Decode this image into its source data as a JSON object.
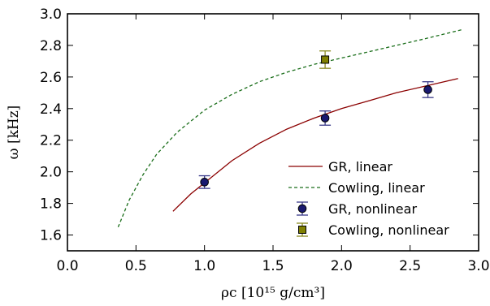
{
  "chart_data": {
    "type": "line",
    "xlabel": "ρc [10¹⁵ g/cm³]",
    "ylabel": "ω [kHz]",
    "xlim": [
      0.0,
      3.0
    ],
    "ylim": [
      1.5,
      3.0
    ],
    "xticks": [
      0.0,
      0.5,
      1.0,
      1.5,
      2.0,
      2.5,
      3.0
    ],
    "yticks": [
      1.6,
      1.8,
      2.0,
      2.2,
      2.4,
      2.6,
      2.8,
      3.0
    ],
    "xtick_labels": [
      "0.0",
      "0.5",
      "1.0",
      "1.5",
      "2.0",
      "2.5",
      "3.0"
    ],
    "ytick_labels": [
      "1.6",
      "1.8",
      "2.0",
      "2.2",
      "2.4",
      "2.6",
      "2.8",
      "3.0"
    ],
    "grid": false,
    "legend_position": "bottom-right",
    "series": [
      {
        "name": "GR, linear",
        "kind": "line",
        "style": "solid",
        "color": "#8b0000",
        "x": [
          0.77,
          0.9,
          1.0,
          1.2,
          1.4,
          1.6,
          1.8,
          2.0,
          2.2,
          2.4,
          2.6,
          2.85
        ],
        "y": [
          1.75,
          1.86,
          1.93,
          2.07,
          2.18,
          2.27,
          2.34,
          2.4,
          2.45,
          2.5,
          2.54,
          2.59
        ]
      },
      {
        "name": "Cowling, linear",
        "kind": "line",
        "style": "dashed",
        "color": "#1a6e1a",
        "x": [
          0.37,
          0.45,
          0.55,
          0.65,
          0.8,
          1.0,
          1.2,
          1.4,
          1.6,
          1.8,
          2.0,
          2.2,
          2.4,
          2.6,
          2.88
        ],
        "y": [
          1.65,
          1.82,
          1.98,
          2.11,
          2.25,
          2.39,
          2.49,
          2.57,
          2.63,
          2.68,
          2.72,
          2.76,
          2.8,
          2.84,
          2.9
        ]
      },
      {
        "name": "GR, nonlinear",
        "kind": "errorbar",
        "marker": "circle",
        "color": "#191970",
        "ecolor": "#3a3a8a",
        "x": [
          1.0,
          1.88,
          2.63
        ],
        "y": [
          1.935,
          2.34,
          2.52
        ],
        "yerr": [
          0.04,
          0.045,
          0.05
        ]
      },
      {
        "name": "Cowling, nonlinear",
        "kind": "errorbar",
        "marker": "square",
        "color": "#808000",
        "ecolor": "#8a8a20",
        "x": [
          1.88
        ],
        "y": [
          2.71
        ],
        "yerr": [
          0.055
        ]
      }
    ]
  }
}
